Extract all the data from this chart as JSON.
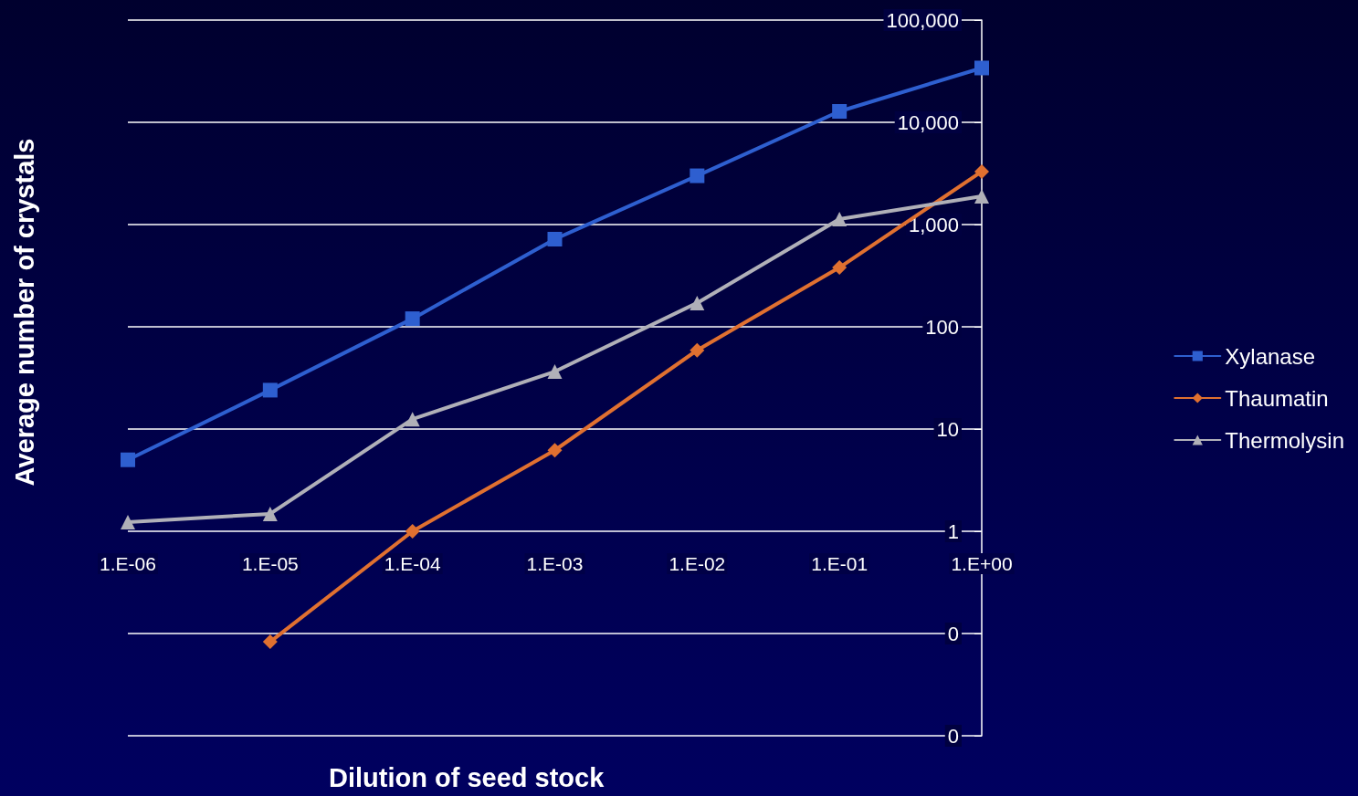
{
  "chart_data": {
    "type": "line",
    "xlabel": "Dilution of seed stock",
    "ylabel": "Average number of crystals",
    "categories": [
      "1.E-06",
      "1.E-05",
      "1.E-04",
      "1.E-03",
      "1.E-02",
      "1.E-01",
      "1.E+00"
    ],
    "series": [
      {
        "name": "Xylanase",
        "color": "#2e5fd0",
        "marker": "square",
        "values": [
          5,
          24,
          120,
          720,
          3000,
          12800,
          34000
        ]
      },
      {
        "name": "Thaumatin",
        "color": "#e07030",
        "marker": "diamond",
        "values": [
          null,
          0.083,
          1,
          6.2,
          59,
          380,
          3300
        ]
      },
      {
        "name": "Thermolysin",
        "color": "#b0b0b8",
        "marker": "triangle",
        "values": [
          1.23,
          1.48,
          12.5,
          36.5,
          171,
          1130,
          1890
        ]
      }
    ],
    "log": "y",
    "ylim": [
      0.01,
      100000
    ],
    "yticks": [
      {
        "value": 0.01,
        "label": "0"
      },
      {
        "value": 0.1,
        "label": "0"
      },
      1,
      10,
      100,
      {
        "value": 1000,
        "label": "1,000"
      },
      {
        "value": 10000,
        "label": "10,000"
      },
      {
        "value": 100000,
        "label": "100,000"
      }
    ],
    "grid": "y",
    "legend": "right",
    "line_style": "solid"
  }
}
